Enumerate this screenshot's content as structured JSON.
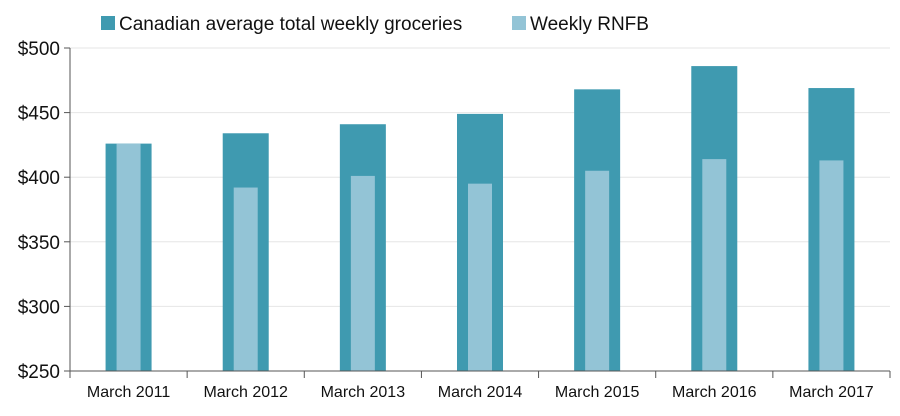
{
  "chart_data": {
    "type": "bar",
    "categories": [
      "March 2011",
      "March 2012",
      "March 2013",
      "March 2014",
      "March 2015",
      "March 2016",
      "March 2017"
    ],
    "series": [
      {
        "name": "Canadian average total weekly groceries",
        "values": [
          426,
          434,
          441,
          449,
          468,
          486,
          469
        ],
        "color": "#3f9ab0"
      },
      {
        "name": "Weekly RNFB",
        "values": [
          426,
          392,
          401,
          395,
          405,
          414,
          413
        ],
        "color": "#93c4d6"
      }
    ],
    "title": "",
    "xlabel": "",
    "ylabel": "",
    "ylim": [
      250,
      500
    ],
    "yticks": [
      250,
      300,
      350,
      400,
      450,
      500
    ],
    "ytick_labels": [
      "$250",
      "$300",
      "$350",
      "$400",
      "$450",
      "$500"
    ],
    "legend": "top",
    "grid": true,
    "overlapping_bars": true
  }
}
